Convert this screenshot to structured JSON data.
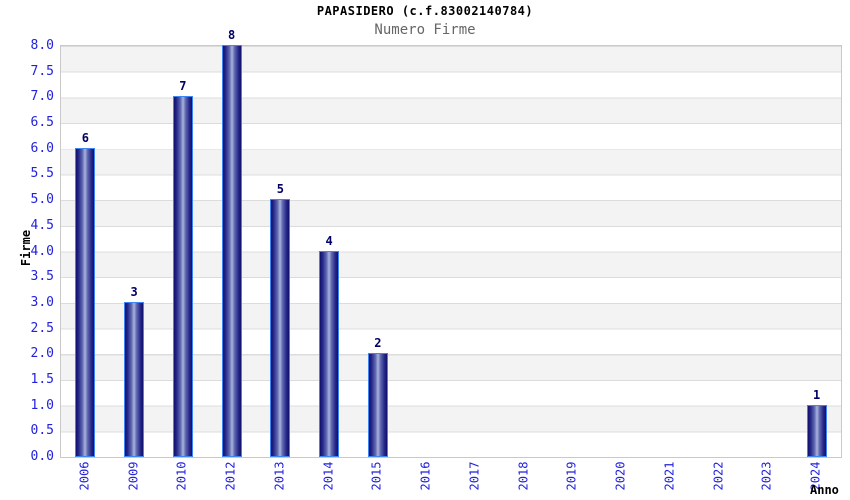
{
  "header": {
    "title": "PAPASIDERO (c.f.83002140784)",
    "subtitle": "Numero Firme"
  },
  "chart_data": {
    "type": "bar",
    "title": "PAPASIDERO (c.f.83002140784)",
    "subtitle": "Numero Firme",
    "xlabel": "Anno",
    "ylabel": "Firme",
    "categories": [
      "2006",
      "2009",
      "2010",
      "2012",
      "2013",
      "2014",
      "2015",
      "2016",
      "2017",
      "2018",
      "2019",
      "2020",
      "2021",
      "2022",
      "2023",
      "2024"
    ],
    "values": [
      6,
      3,
      7,
      8,
      5,
      4,
      2,
      0,
      0,
      0,
      0,
      0,
      0,
      0,
      0,
      1
    ],
    "ylim": [
      0,
      8
    ],
    "ytick_step": 0.5,
    "yticks": [
      "0.0",
      "0.5",
      "1.0",
      "1.5",
      "2.0",
      "2.5",
      "3.0",
      "3.5",
      "4.0",
      "4.5",
      "5.0",
      "5.5",
      "6.0",
      "6.5",
      "7.0",
      "7.5",
      "8.0"
    ],
    "bar_value_labels_shown_for_nonzero_only": true,
    "grid": "horizontal-bands",
    "legend": "none"
  },
  "colors": {
    "tick_label": "#2222dd",
    "value_label": "#000066",
    "bar_dark": "#10106e",
    "bar_light": "#aab3dd",
    "bar_outline": "#3d85f2",
    "band_gray": "#f3f3f3",
    "grid_line": "#dcdcdc",
    "subtitle_gray": "#666666"
  }
}
